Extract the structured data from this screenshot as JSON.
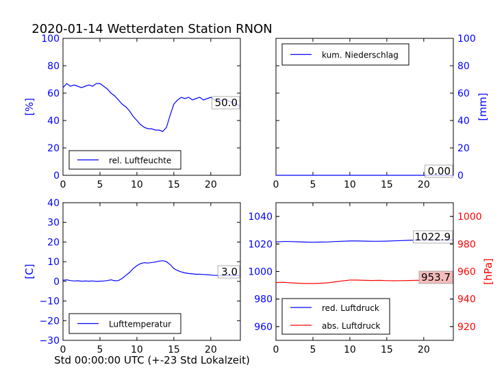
{
  "title": "2020-01-14 Wetterdaten Station RNON",
  "xlabel": "Std 00:00:00 UTC (+-23 Std Lokalzeit)",
  "colors": {
    "blue": "#0000ff",
    "red": "#ff0000",
    "label_box_red": "#f4bcbc"
  },
  "chart_data": [
    {
      "id": "humidity",
      "type": "line",
      "ylabel": "[%]",
      "xlim": [
        0,
        24
      ],
      "ylim": [
        0,
        100
      ],
      "xticks": [
        0,
        5,
        10,
        15,
        20
      ],
      "yticks": [
        0,
        20,
        40,
        60,
        80,
        100
      ],
      "ytick_labels": [
        "0",
        "20",
        "40",
        "60",
        "80",
        "100"
      ],
      "legend_position": "lower-left",
      "series": [
        {
          "name": "rel. Luftfeuchte",
          "color": "#0000ff",
          "x": [
            0,
            0.5,
            1,
            1.5,
            2,
            2.5,
            3,
            3.5,
            4,
            4.5,
            5,
            5.5,
            6,
            6.5,
            7,
            7.5,
            8,
            8.5,
            9,
            9.5,
            10,
            10.5,
            11,
            11.5,
            12,
            12.5,
            13,
            13.5,
            14,
            14.5,
            15,
            15.5,
            16,
            16.5,
            17,
            17.5,
            18,
            18.5,
            19,
            19.5,
            20,
            20.5,
            21,
            21.5,
            22,
            22.5,
            23,
            23.5,
            24
          ],
          "y": [
            64,
            67,
            65,
            66,
            65,
            64,
            65,
            66,
            65,
            67,
            67,
            65,
            63,
            60,
            58,
            55,
            52,
            50,
            47,
            43,
            40,
            37,
            35,
            34,
            34,
            33,
            33,
            32,
            35,
            44,
            52,
            55,
            57,
            56,
            57,
            55,
            56,
            57,
            55,
            56,
            57,
            55,
            54,
            55,
            56,
            54,
            53,
            52,
            50
          ],
          "last_value_label": "50.0"
        }
      ]
    },
    {
      "id": "precipitation",
      "type": "line",
      "ylabel": "[mm]",
      "xlim": [
        0,
        24
      ],
      "ylim": [
        0,
        100
      ],
      "xticks": [
        0,
        5,
        10,
        15,
        20
      ],
      "yticks": [
        0,
        20,
        40,
        60,
        80,
        100
      ],
      "ytick_labels": [
        "0",
        "20",
        "40",
        "60",
        "80",
        "100"
      ],
      "yaxis_side": "right",
      "legend_position": "upper-left",
      "series": [
        {
          "name": "kum. Niederschlag",
          "color": "#0000ff",
          "x": [
            0,
            24
          ],
          "y": [
            0,
            0
          ],
          "last_value_label": "0.00"
        }
      ]
    },
    {
      "id": "temperature",
      "type": "line",
      "ylabel": "[C]",
      "xlim": [
        0,
        24
      ],
      "ylim": [
        -30,
        40
      ],
      "xticks": [
        0,
        5,
        10,
        15,
        20
      ],
      "yticks": [
        -30,
        -20,
        -10,
        0,
        10,
        20,
        30,
        40
      ],
      "ytick_labels": [
        "−30",
        "−20",
        "−10",
        "0",
        "10",
        "20",
        "30",
        "40"
      ],
      "legend_position": "lower-left",
      "series": [
        {
          "name": "Lufttemperatur",
          "color": "#0000ff",
          "x": [
            0,
            0.5,
            1,
            1.5,
            2,
            2.5,
            3,
            3.5,
            4,
            4.5,
            5,
            5.5,
            6,
            6.5,
            7,
            7.5,
            8,
            8.5,
            9,
            9.5,
            10,
            10.5,
            11,
            11.5,
            12,
            12.5,
            13,
            13.5,
            14,
            14.5,
            15,
            15.5,
            16,
            16.5,
            17,
            17.5,
            18,
            18.5,
            19,
            19.5,
            20,
            20.5,
            21,
            21.5,
            22,
            22.5,
            23,
            23.5,
            24
          ],
          "y": [
            0.5,
            0.8,
            0.4,
            0.2,
            0.3,
            0.1,
            0.2,
            0.1,
            0.2,
            0,
            0.1,
            0.2,
            0.4,
            0.8,
            0.3,
            0.4,
            1.5,
            3,
            4.5,
            6.5,
            8,
            9,
            9.5,
            9.3,
            9.6,
            9.8,
            10.3,
            10.5,
            10,
            8.5,
            6.5,
            5.5,
            4.8,
            4.3,
            4,
            3.8,
            3.6,
            3.6,
            3.5,
            3.4,
            3.2,
            3.0,
            3.0,
            2.8,
            2.9,
            3.0,
            3.1,
            3.0,
            3.0
          ],
          "last_value_label": "3.0"
        }
      ]
    },
    {
      "id": "pressure",
      "type": "line",
      "ylabel": "[hPa]",
      "xlim": [
        0,
        24
      ],
      "ylim_left": [
        950,
        1050
      ],
      "ylim_right": [
        910,
        1010
      ],
      "xticks": [
        0,
        5,
        10,
        15,
        20
      ],
      "yticks_left": [
        960,
        980,
        1000,
        1020,
        1040
      ],
      "yticks_right": [
        920,
        940,
        960,
        980,
        1000
      ],
      "legend_position": "lower-left",
      "series": [
        {
          "name": "red. Luftdruck",
          "color": "#0000ff",
          "axis": "left",
          "x": [
            0,
            1,
            2,
            3,
            4,
            5,
            6,
            7,
            8,
            9,
            10,
            11,
            12,
            13,
            14,
            15,
            16,
            17,
            18,
            19,
            20,
            21,
            22,
            23,
            24
          ],
          "y": [
            1021.5,
            1021.8,
            1021.8,
            1021.6,
            1021.4,
            1021.3,
            1021.4,
            1021.5,
            1021.8,
            1022.0,
            1022.2,
            1022.2,
            1022.1,
            1022.0,
            1022.0,
            1022.1,
            1022.3,
            1022.5,
            1022.7,
            1022.8,
            1022.9,
            1022.9,
            1022.9,
            1022.9,
            1022.9
          ],
          "last_value_label": "1022.9"
        },
        {
          "name": "abs. Luftdruck",
          "color": "#ff0000",
          "axis": "right",
          "x": [
            0,
            1,
            2,
            3,
            4,
            5,
            6,
            7,
            8,
            9,
            10,
            11,
            12,
            13,
            14,
            15,
            16,
            17,
            18,
            19,
            20,
            21,
            22,
            23,
            24
          ],
          "y": [
            952.0,
            952.2,
            951.8,
            951.5,
            951.3,
            951.3,
            951.5,
            951.8,
            952.5,
            953.2,
            953.8,
            953.8,
            953.6,
            953.5,
            953.6,
            953.4,
            953.3,
            953.4,
            953.5,
            953.6,
            953.6,
            953.7,
            953.7,
            953.7,
            953.7
          ],
          "last_value_label": "953.7"
        }
      ]
    }
  ]
}
